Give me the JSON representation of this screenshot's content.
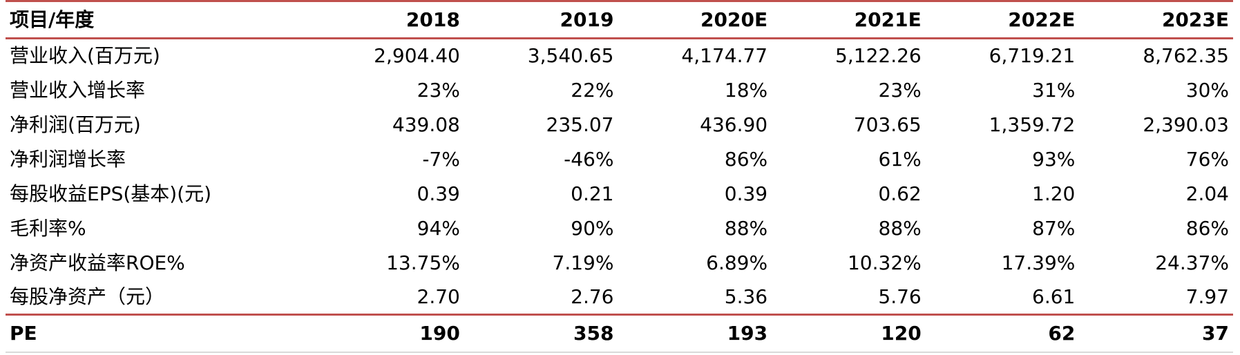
{
  "table": {
    "header": [
      "项目/年度",
      "2018",
      "2019",
      "2020E",
      "2021E",
      "2022E",
      "2023E"
    ],
    "rows": [
      {
        "label": "营业收入(百万元)",
        "values": [
          "2,904.40",
          "3,540.65",
          "4,174.77",
          "5,122.26",
          "6,719.21",
          "8,762.35"
        ]
      },
      {
        "label": "营业收入增长率",
        "values": [
          "23%",
          "22%",
          "18%",
          "23%",
          "31%",
          "30%"
        ]
      },
      {
        "label": "净利润(百万元)",
        "values": [
          "439.08",
          "235.07",
          "436.90",
          "703.65",
          "1,359.72",
          "2,390.03"
        ]
      },
      {
        "label": "净利润增长率",
        "values": [
          "-7%",
          "-46%",
          "86%",
          "61%",
          "93%",
          "76%"
        ]
      },
      {
        "label": "每股收益EPS(基本)(元)",
        "values": [
          "0.39",
          "0.21",
          "0.39",
          "0.62",
          "1.20",
          "2.04"
        ]
      },
      {
        "label": "毛利率%",
        "values": [
          "94%",
          "90%",
          "88%",
          "88%",
          "87%",
          "86%"
        ]
      },
      {
        "label": "净资产收益率ROE%",
        "values": [
          "13.75%",
          "7.19%",
          "6.89%",
          "10.32%",
          "17.39%",
          "24.37%"
        ]
      },
      {
        "label": "每股净资产（元）",
        "values": [
          "2.70",
          "2.76",
          "5.36",
          "5.76",
          "6.61",
          "7.97"
        ]
      }
    ],
    "footer": {
      "label": "PE",
      "values": [
        "190",
        "358",
        "193",
        "120",
        "62",
        "37"
      ]
    }
  },
  "colors": {
    "rule": "#c0504d",
    "bottom_rule": "#d9d9d9"
  }
}
